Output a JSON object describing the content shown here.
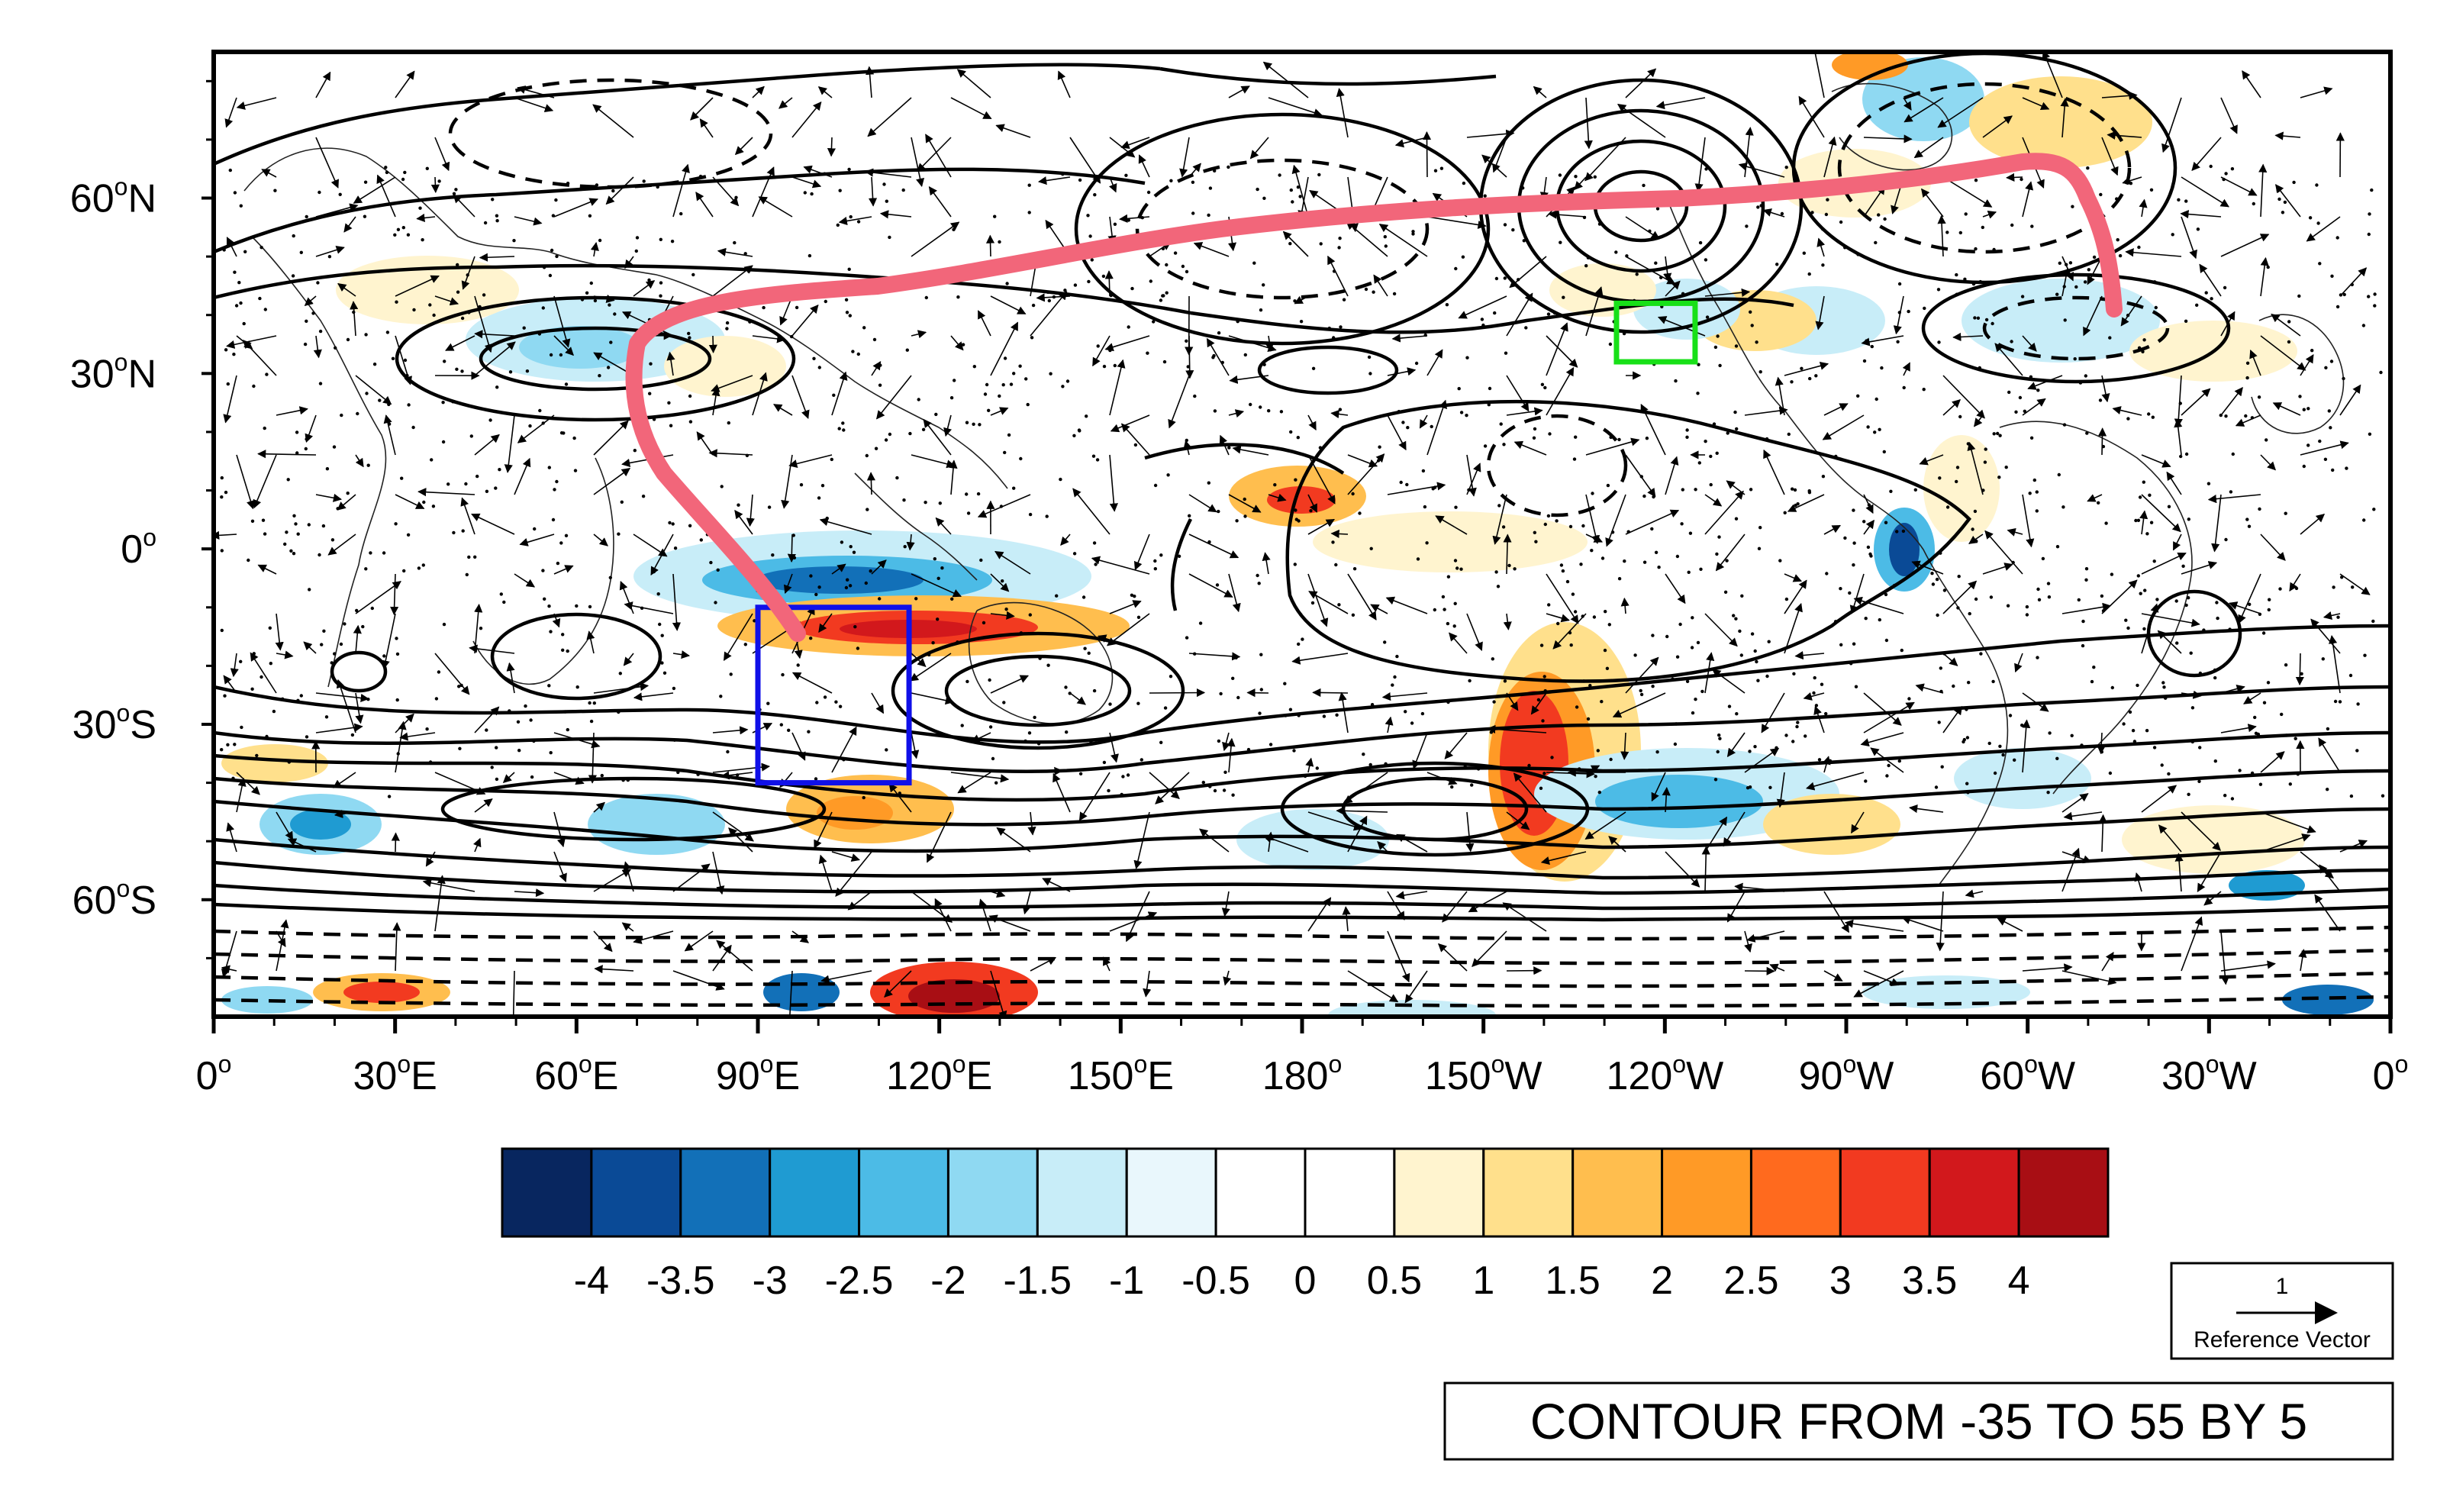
{
  "map": {
    "lat_labels": [
      {
        "value": "60",
        "hemi": "N"
      },
      {
        "value": "30",
        "hemi": "N"
      },
      {
        "value": "0",
        "hemi": ""
      },
      {
        "value": "30",
        "hemi": "S"
      },
      {
        "value": "60",
        "hemi": "S"
      }
    ],
    "lon_labels": [
      {
        "value": "0",
        "hemi": ""
      },
      {
        "value": "30",
        "hemi": "E"
      },
      {
        "value": "60",
        "hemi": "E"
      },
      {
        "value": "90",
        "hemi": "E"
      },
      {
        "value": "120",
        "hemi": "E"
      },
      {
        "value": "150",
        "hemi": "E"
      },
      {
        "value": "180",
        "hemi": ""
      },
      {
        "value": "150",
        "hemi": "W"
      },
      {
        "value": "120",
        "hemi": "W"
      },
      {
        "value": "90",
        "hemi": "W"
      },
      {
        "value": "60",
        "hemi": "W"
      },
      {
        "value": "30",
        "hemi": "W"
      },
      {
        "value": "0",
        "hemi": ""
      }
    ],
    "degree_symbol": "o",
    "blue_box": {
      "lon": [
        90,
        115
      ],
      "lat": [
        -40,
        -10
      ],
      "color": "#1010e8"
    },
    "green_box": {
      "lon": [
        -128,
        -115
      ],
      "lat": [
        32,
        42
      ],
      "color": "#18e018"
    },
    "wave_train_color": "#f2667a"
  },
  "colorbar": {
    "labels": [
      "-4",
      "-3.5",
      "-3",
      "-2.5",
      "-2",
      "-1.5",
      "-1",
      "-0.5",
      "0",
      "0.5",
      "1",
      "1.5",
      "2",
      "2.5",
      "3",
      "3.5",
      "4"
    ],
    "colors": [
      "#08265f",
      "#0a4a96",
      "#1270b8",
      "#1f9bd2",
      "#4cbbe6",
      "#8fd9f2",
      "#c8edf8",
      "#e9f7fc",
      "#ffffff",
      "#ffffff",
      "#fff4cf",
      "#ffe08c",
      "#ffbe4e",
      "#ff9a26",
      "#ff6a1e",
      "#f23a20",
      "#d2181c",
      "#a80e14"
    ]
  },
  "reference_vector": {
    "magnitude": "1",
    "label": "Reference Vector"
  },
  "contour_info": "CONTOUR FROM -35 TO 55 BY 5"
}
